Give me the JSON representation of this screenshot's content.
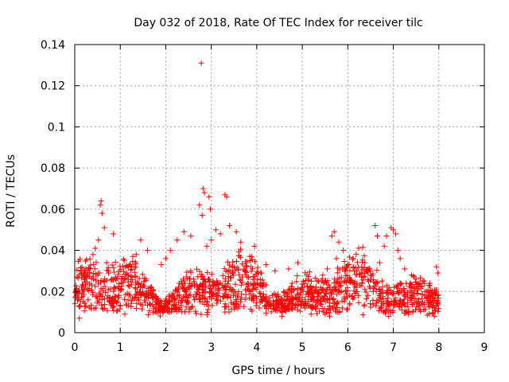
{
  "chart_data": {
    "type": "scatter",
    "title": "Day 032 of 2018, Rate Of TEC Index for receiver tilc",
    "xlabel": "GPS time / hours",
    "ylabel": "ROTI / TECUs",
    "xlim": [
      0,
      9
    ],
    "ylim": [
      0,
      0.14
    ],
    "xticks": [
      0,
      1,
      2,
      3,
      4,
      5,
      6,
      7,
      8,
      9
    ],
    "yticks": [
      0,
      0.02,
      0.04,
      0.06,
      0.08,
      0.1,
      0.12,
      0.14
    ],
    "xtick_labels": [
      "0",
      "1",
      "2",
      "3",
      "4",
      "5",
      "6",
      "7",
      "8",
      "9"
    ],
    "ytick_labels": [
      "0",
      "0.02",
      "0.04",
      "0.06",
      "0.08",
      "0.1",
      "0.12",
      "0.14"
    ],
    "grid": true,
    "marker": "+",
    "marker_color": "#ff0000",
    "series": [
      {
        "name": "ROTI",
        "x_range": [
          0.0,
          8.0
        ],
        "typical_range": [
          0.008,
          0.035
        ],
        "points": [
          [
            2.78,
            0.131
          ],
          [
            0.58,
            0.064
          ],
          [
            0.56,
            0.062
          ],
          [
            0.6,
            0.058
          ],
          [
            0.65,
            0.051
          ],
          [
            0.85,
            0.048
          ],
          [
            0.52,
            0.045
          ],
          [
            0.45,
            0.041
          ],
          [
            0.4,
            0.038
          ],
          [
            0.7,
            0.034
          ],
          [
            0.3,
            0.031
          ],
          [
            0.2,
            0.027
          ],
          [
            0.05,
            0.027
          ],
          [
            1.45,
            0.045
          ],
          [
            1.6,
            0.04
          ],
          [
            1.35,
            0.038
          ],
          [
            1.25,
            0.032
          ],
          [
            1.15,
            0.029
          ],
          [
            2.25,
            0.045
          ],
          [
            2.4,
            0.049
          ],
          [
            2.55,
            0.047
          ],
          [
            2.1,
            0.04
          ],
          [
            2.0,
            0.036
          ],
          [
            1.9,
            0.033
          ],
          [
            2.82,
            0.07
          ],
          [
            2.85,
            0.068
          ],
          [
            2.95,
            0.066
          ],
          [
            2.74,
            0.062
          ],
          [
            2.98,
            0.06
          ],
          [
            2.8,
            0.057
          ],
          [
            3.3,
            0.067
          ],
          [
            3.34,
            0.066
          ],
          [
            3.1,
            0.05
          ],
          [
            3.2,
            0.048
          ],
          [
            3.4,
            0.052
          ],
          [
            3.55,
            0.049
          ],
          [
            3.65,
            0.044
          ],
          [
            3.0,
            0.045
          ],
          [
            2.9,
            0.042
          ],
          [
            3.3,
            0.01
          ],
          [
            2.55,
            0.012
          ],
          [
            3.95,
            0.042
          ],
          [
            3.85,
            0.035
          ],
          [
            3.75,
            0.03
          ],
          [
            4.2,
            0.033
          ],
          [
            4.4,
            0.03
          ],
          [
            4.9,
            0.034
          ],
          [
            4.7,
            0.031
          ],
          [
            5.1,
            0.028
          ],
          [
            5.2,
            0.025
          ],
          [
            5.5,
            0.009
          ],
          [
            5.6,
            0.008
          ],
          [
            5.65,
            0.047
          ],
          [
            5.7,
            0.049
          ],
          [
            5.8,
            0.044
          ],
          [
            5.9,
            0.04
          ],
          [
            5.75,
            0.036
          ],
          [
            6.0,
            0.033
          ],
          [
            5.55,
            0.031
          ],
          [
            5.45,
            0.028
          ],
          [
            6.2,
            0.03
          ],
          [
            6.3,
            0.027
          ],
          [
            6.45,
            0.031
          ],
          [
            6.6,
            0.052
          ],
          [
            6.65,
            0.047
          ],
          [
            6.85,
            0.047
          ],
          [
            6.95,
            0.051
          ],
          [
            7.0,
            0.05
          ],
          [
            7.05,
            0.048
          ],
          [
            6.8,
            0.042
          ],
          [
            7.1,
            0.04
          ],
          [
            7.15,
            0.036
          ],
          [
            6.7,
            0.034
          ],
          [
            7.25,
            0.031
          ],
          [
            7.4,
            0.028
          ],
          [
            7.5,
            0.026
          ],
          [
            7.65,
            0.025
          ],
          [
            7.8,
            0.024
          ],
          [
            7.95,
            0.032
          ],
          [
            7.98,
            0.029
          ],
          [
            6.9,
            0.008
          ],
          [
            7.9,
            0.008
          ],
          [
            4.55,
            0.008
          ],
          [
            0.1,
            0.007
          ],
          [
            1.1,
            0.009
          ]
        ]
      }
    ]
  }
}
